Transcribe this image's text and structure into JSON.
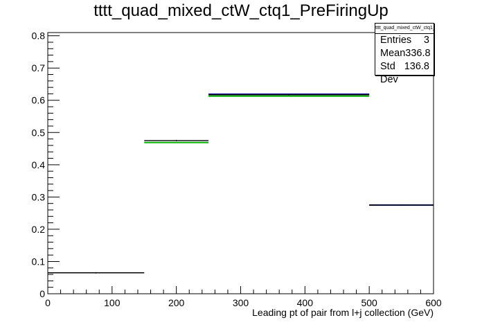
{
  "chart_data": {
    "type": "histogram",
    "title": "tttt_quad_mixed_ctW_ctq1_PreFiringUp",
    "xlabel": "Leading pt of pair from l+j collection (GeV)",
    "ylabel": "",
    "xlim": [
      0,
      600
    ],
    "ylim": [
      0,
      0.81
    ],
    "x_ticks": [
      "0",
      "100",
      "200",
      "300",
      "400",
      "500",
      "600"
    ],
    "y_ticks": [
      "0",
      "0.1",
      "0.2",
      "0.3",
      "0.4",
      "0.5",
      "0.6",
      "0.7",
      "0.8"
    ],
    "bins": [
      {
        "x0": 0,
        "x1": 150,
        "y": 0.065
      },
      {
        "x0": 150,
        "x1": 250,
        "y": 0.475
      },
      {
        "x0": 250,
        "x1": 500,
        "y": 0.617
      },
      {
        "x0": 500,
        "x1": 600,
        "y": 0.275
      }
    ],
    "overlay_lines": [
      {
        "color": "#00b400",
        "segments": [
          {
            "x0": 150,
            "x1": 250,
            "y": 0.469
          },
          {
            "x0": 250,
            "x1": 500,
            "y": 0.613
          }
        ]
      },
      {
        "color": "#1a1aa0",
        "segments": [
          {
            "x0": 250,
            "x1": 500,
            "y": 0.619
          },
          {
            "x0": 500,
            "x1": 600,
            "y": 0.275
          }
        ]
      }
    ],
    "stats": {
      "name": "tttt_quad_mixed_ctW_ctq1_PreFiringUp",
      "rows": [
        {
          "label": "Entries",
          "value": "3"
        },
        {
          "label": "Mean",
          "value": "336.8"
        },
        {
          "label": "Std Dev",
          "value": "136.8"
        }
      ]
    }
  }
}
